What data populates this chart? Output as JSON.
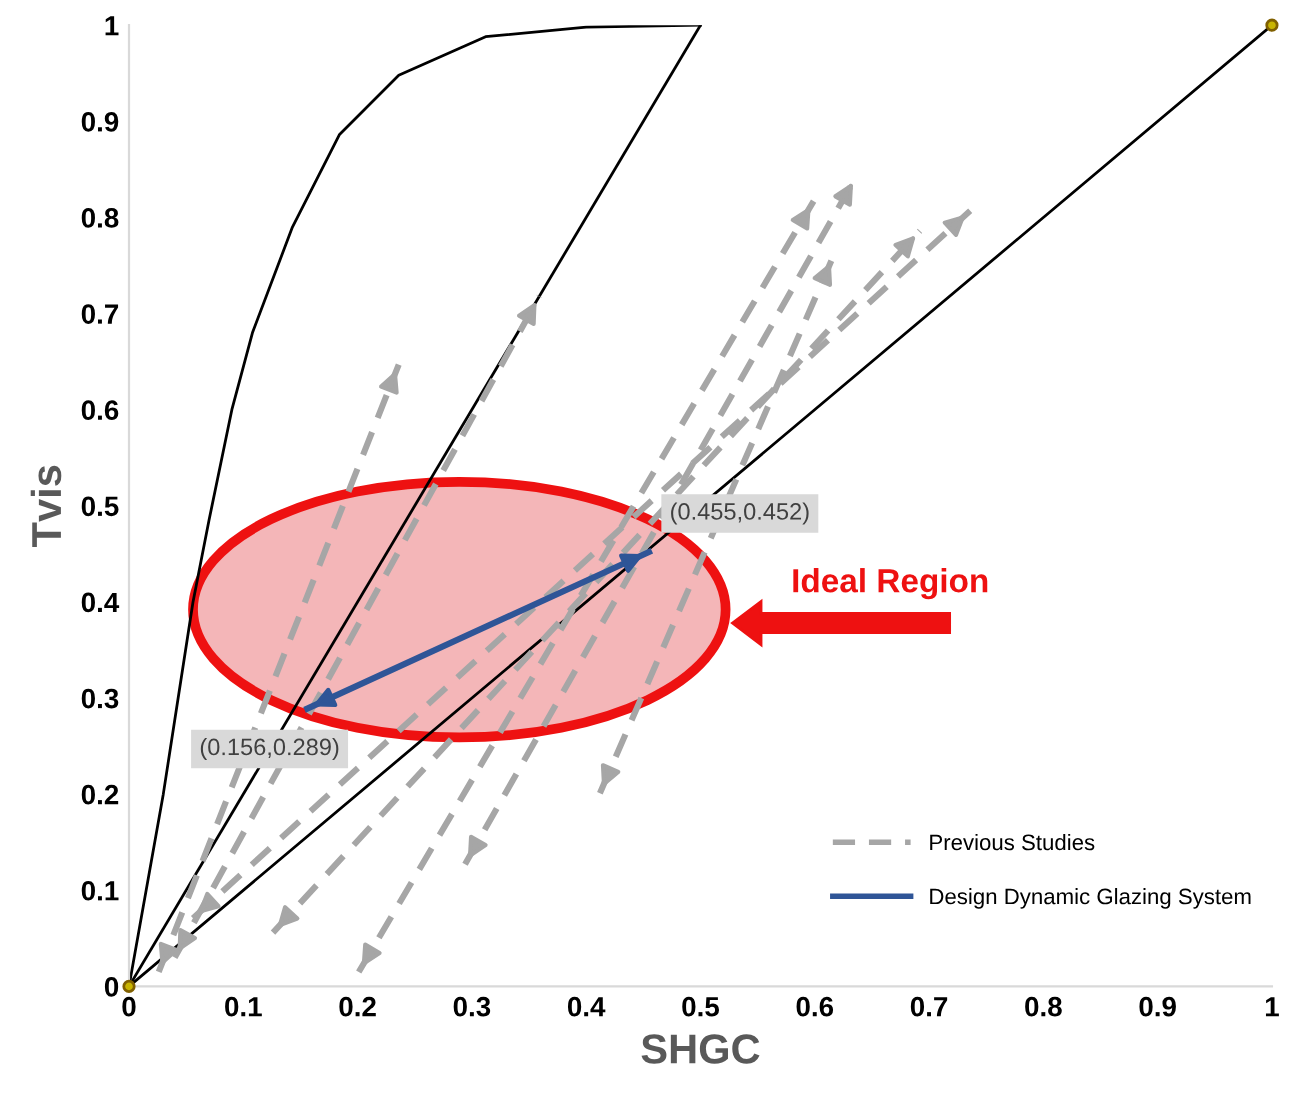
{
  "chart_data": {
    "type": "line",
    "xlabel": "SHGC",
    "ylabel": "Tvis",
    "xlim": [
      0,
      1
    ],
    "ylim": [
      0,
      1
    ],
    "xticks": [
      0,
      0.1,
      0.2,
      0.3,
      0.4,
      0.5,
      0.6,
      0.7,
      0.8,
      0.9,
      1
    ],
    "yticks": [
      0,
      0.1,
      0.2,
      0.3,
      0.4,
      0.5,
      0.6,
      0.7,
      0.8,
      0.9,
      1
    ],
    "grid": false,
    "legend": "bottom right",
    "series": [
      {
        "color": "#000000",
        "x": [
          0,
          0.03,
          0.056,
          0.07,
          0.09,
          0.108,
          0.143,
          0.184,
          0.236,
          0.312,
          0.4,
          0.5
        ],
        "values": [
          0,
          0.2,
          0.4,
          0.485,
          0.6,
          0.68,
          0.79,
          0.886,
          0.948,
          0.988,
          0.998,
          1
        ]
      },
      {
        "color": "#000000",
        "x": [
          0,
          0.5
        ],
        "values": [
          0,
          1
        ],
        "marker": "none"
      },
      {
        "color": "#000000",
        "x": [
          0,
          1
        ],
        "values": [
          0,
          1
        ],
        "marker": "none"
      },
      {
        "type": "scatter",
        "color": "#c8b400",
        "x": [
          0,
          1
        ],
        "values": [
          0,
          1
        ],
        "marker": "circle"
      },
      {
        "name": "Previous Studies",
        "color": "#a6a6a6",
        "line_style": "dashed",
        "x": [
          0.026,
          0.236
        ],
        "values": [
          0.015,
          0.647
        ]
      },
      {
        "color": "#a6a6a6",
        "line_style": "dashed",
        "x": [
          0.04,
          0.359
        ],
        "values": [
          0.03,
          0.718
        ]
      },
      {
        "color": "#a6a6a6",
        "line_style": "dashed",
        "x": [
          0.201,
          0.599
        ],
        "values": [
          0.015,
          0.817
        ]
      },
      {
        "color": "#a6a6a6",
        "line_style": "dashed",
        "x": [
          0.126,
          0.692
        ],
        "values": [
          0.056,
          0.786
        ]
      },
      {
        "color": "#a6a6a6",
        "line_style": "dashed",
        "x": [
          0.056,
          0.736
        ],
        "values": [
          0.071,
          0.807
        ]
      },
      {
        "color": "#a6a6a6",
        "line_style": "dashed",
        "x": [
          0.294,
          0.636
        ],
        "values": [
          0.127,
          0.842
        ]
      },
      {
        "color": "#a6a6a6",
        "line_style": "dashed",
        "x": [
          0.412,
          0.616
        ],
        "values": [
          0.201,
          0.759
        ]
      },
      {
        "name": "Design Dynamic Glazing System",
        "color": "#2f5597",
        "line_style": "solid",
        "x": [
          0.156,
          0.455
        ],
        "values": [
          0.289,
          0.452
        ]
      }
    ],
    "annotations": [
      {
        "text": "(0.455,0.452)",
        "x": 0.455,
        "y": 0.452
      },
      {
        "text": "(0.156,0.289)",
        "x": 0.156,
        "y": 0.289
      },
      "Ideal Region"
    ]
  }
}
